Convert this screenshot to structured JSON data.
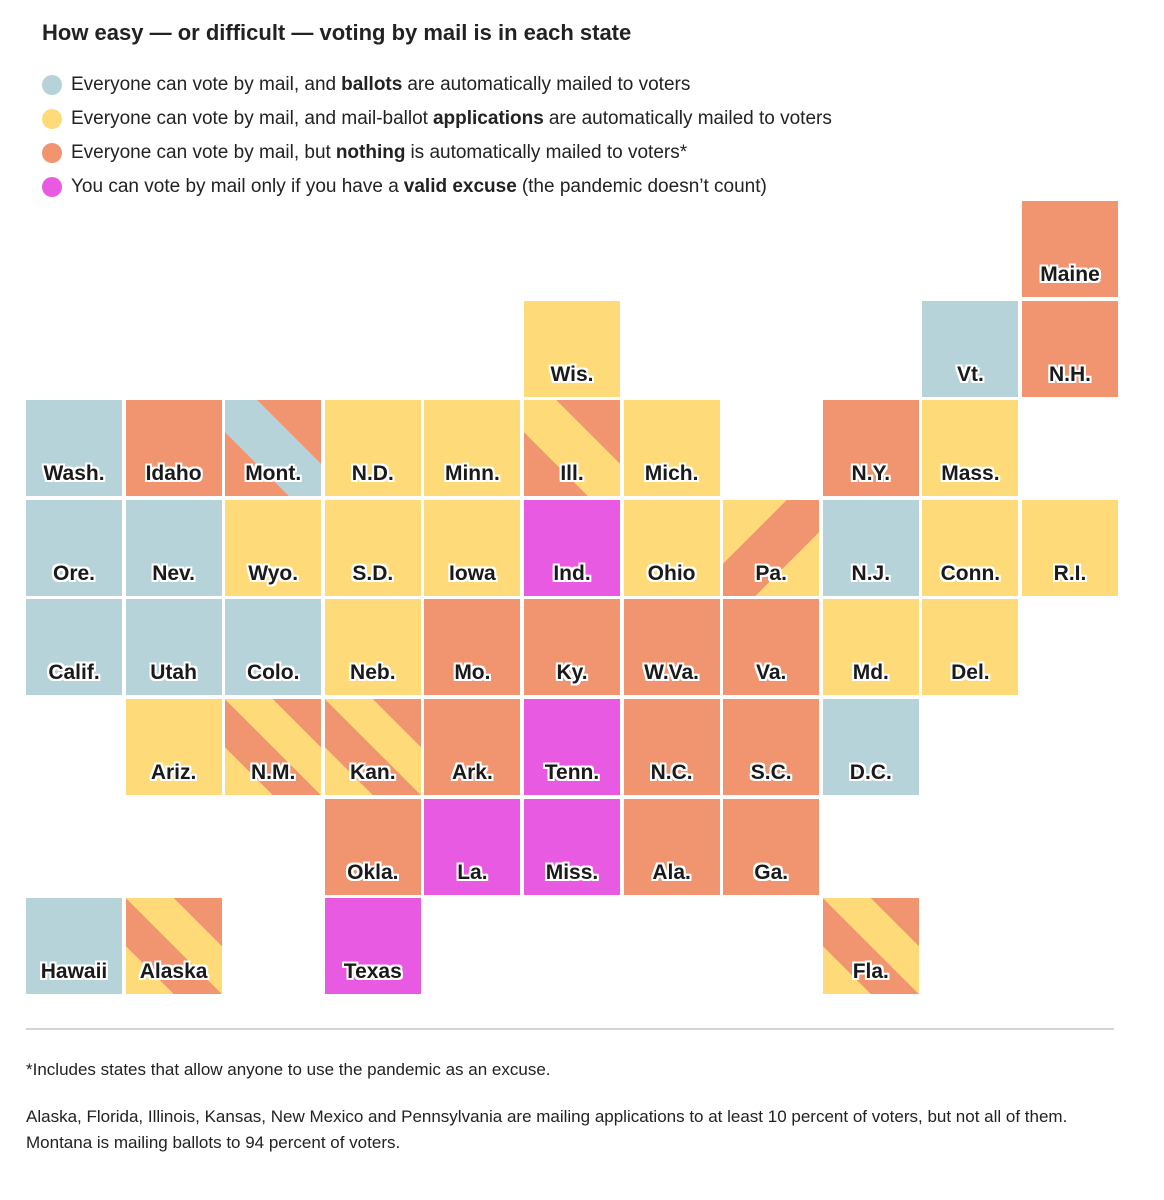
{
  "title": "How easy — or difficult — voting by mail is in each state",
  "colors": {
    "ballots": "#b6d3da",
    "applications": "#fedb78",
    "nothing": "#f0956f",
    "excuse": "#e95ae2"
  },
  "legend": [
    {
      "key": "ballots",
      "pre": "Everyone can vote by mail, and",
      "bold": "ballots",
      "post": "are automatically mailed to voters"
    },
    {
      "key": "applications",
      "pre": "Everyone can vote by mail, and mail-ballot",
      "bold": "applications",
      "post": "are automatically mailed to voters"
    },
    {
      "key": "nothing",
      "pre": "Everyone can vote by mail, but",
      "bold": "nothing",
      "post": "is automatically mailed to voters*"
    },
    {
      "key": "excuse",
      "pre": "You can vote by mail only if you have a",
      "bold": "valid excuse",
      "post": "(the pandemic doesn’t count)"
    }
  ],
  "chart_data": {
    "type": "tile-map",
    "title": "How easy — or difficult — voting by mail is in each state",
    "states": [
      {
        "label": "Maine",
        "col": 10,
        "row": 0,
        "cat": "nothing"
      },
      {
        "label": "Wis.",
        "col": 5,
        "row": 1,
        "cat": "applications"
      },
      {
        "label": "Vt.",
        "col": 9,
        "row": 1,
        "cat": "ballots"
      },
      {
        "label": "N.H.",
        "col": 10,
        "row": 1,
        "cat": "nothing"
      },
      {
        "label": "Wash.",
        "col": 0,
        "row": 2,
        "cat": "ballots"
      },
      {
        "label": "Idaho",
        "col": 1,
        "row": 2,
        "cat": "nothing"
      },
      {
        "label": "Mont.",
        "col": 2,
        "row": 2,
        "cat": "ballots",
        "mix": [
          "nothing",
          "ballots",
          "nothing"
        ],
        "dir": "a"
      },
      {
        "label": "N.D.",
        "col": 3,
        "row": 2,
        "cat": "applications"
      },
      {
        "label": "Minn.",
        "col": 4,
        "row": 2,
        "cat": "applications"
      },
      {
        "label": "Ill.",
        "col": 5,
        "row": 2,
        "cat": "nothing",
        "mix": [
          "nothing",
          "applications",
          "nothing"
        ],
        "dir": "a"
      },
      {
        "label": "Mich.",
        "col": 6,
        "row": 2,
        "cat": "applications"
      },
      {
        "label": "N.Y.",
        "col": 8,
        "row": 2,
        "cat": "nothing"
      },
      {
        "label": "Mass.",
        "col": 9,
        "row": 2,
        "cat": "applications"
      },
      {
        "label": "Ore.",
        "col": 0,
        "row": 3,
        "cat": "ballots"
      },
      {
        "label": "Nev.",
        "col": 1,
        "row": 3,
        "cat": "ballots"
      },
      {
        "label": "Wyo.",
        "col": 2,
        "row": 3,
        "cat": "applications"
      },
      {
        "label": "S.D.",
        "col": 3,
        "row": 3,
        "cat": "applications"
      },
      {
        "label": "Iowa",
        "col": 4,
        "row": 3,
        "cat": "applications"
      },
      {
        "label": "Ind.",
        "col": 5,
        "row": 3,
        "cat": "excuse"
      },
      {
        "label": "Ohio",
        "col": 6,
        "row": 3,
        "cat": "applications"
      },
      {
        "label": "Pa.",
        "col": 7,
        "row": 3,
        "cat": "nothing",
        "mix": [
          "applications",
          "nothing",
          "applications"
        ],
        "dir": "b"
      },
      {
        "label": "N.J.",
        "col": 8,
        "row": 3,
        "cat": "ballots"
      },
      {
        "label": "Conn.",
        "col": 9,
        "row": 3,
        "cat": "applications"
      },
      {
        "label": "R.I.",
        "col": 10,
        "row": 3,
        "cat": "applications"
      },
      {
        "label": "Calif.",
        "col": 0,
        "row": 4,
        "cat": "ballots"
      },
      {
        "label": "Utah",
        "col": 1,
        "row": 4,
        "cat": "ballots"
      },
      {
        "label": "Colo.",
        "col": 2,
        "row": 4,
        "cat": "ballots"
      },
      {
        "label": "Neb.",
        "col": 3,
        "row": 4,
        "cat": "applications"
      },
      {
        "label": "Mo.",
        "col": 4,
        "row": 4,
        "cat": "nothing"
      },
      {
        "label": "Ky.",
        "col": 5,
        "row": 4,
        "cat": "nothing"
      },
      {
        "label": "W.Va.",
        "col": 6,
        "row": 4,
        "cat": "nothing"
      },
      {
        "label": "Va.",
        "col": 7,
        "row": 4,
        "cat": "nothing"
      },
      {
        "label": "Md.",
        "col": 8,
        "row": 4,
        "cat": "applications"
      },
      {
        "label": "Del.",
        "col": 9,
        "row": 4,
        "cat": "applications"
      },
      {
        "label": "Ariz.",
        "col": 1,
        "row": 5,
        "cat": "applications"
      },
      {
        "label": "N.M.",
        "col": 2,
        "row": 5,
        "cat": "nothing",
        "mix": [
          "applications",
          "nothing",
          "applications",
          "nothing"
        ],
        "dir": "a"
      },
      {
        "label": "Kan.",
        "col": 3,
        "row": 5,
        "cat": "nothing",
        "mix": [
          "applications",
          "nothing",
          "applications",
          "nothing"
        ],
        "dir": "a"
      },
      {
        "label": "Ark.",
        "col": 4,
        "row": 5,
        "cat": "nothing"
      },
      {
        "label": "Tenn.",
        "col": 5,
        "row": 5,
        "cat": "excuse"
      },
      {
        "label": "N.C.",
        "col": 6,
        "row": 5,
        "cat": "nothing"
      },
      {
        "label": "S.C.",
        "col": 7,
        "row": 5,
        "cat": "nothing"
      },
      {
        "label": "D.C.",
        "col": 8,
        "row": 5,
        "cat": "ballots"
      },
      {
        "label": "Okla.",
        "col": 3,
        "row": 6,
        "cat": "nothing"
      },
      {
        "label": "La.",
        "col": 4,
        "row": 6,
        "cat": "excuse"
      },
      {
        "label": "Miss.",
        "col": 5,
        "row": 6,
        "cat": "excuse"
      },
      {
        "label": "Ala.",
        "col": 6,
        "row": 6,
        "cat": "nothing"
      },
      {
        "label": "Ga.",
        "col": 7,
        "row": 6,
        "cat": "nothing"
      },
      {
        "label": "Hawaii",
        "col": 0,
        "row": 7,
        "cat": "ballots"
      },
      {
        "label": "Alaska",
        "col": 1,
        "row": 7,
        "cat": "nothing",
        "mix": [
          "applications",
          "nothing",
          "applications",
          "nothing"
        ],
        "dir": "a"
      },
      {
        "label": "Texas",
        "col": 3,
        "row": 7,
        "cat": "excuse"
      },
      {
        "label": "Fla.",
        "col": 8,
        "row": 7,
        "cat": "nothing",
        "mix": [
          "applications",
          "nothing",
          "applications",
          "nothing"
        ],
        "dir": "a"
      }
    ]
  },
  "footnotes": {
    "note1": "*Includes states that allow anyone to use the pandemic as an excuse.",
    "note2": "Alaska, Florida, Illinois, Kansas, New Mexico and Pennsylvania are mailing applications to at least 10 percent of voters, but not all of them. Montana is mailing ballots to 94 percent of voters."
  }
}
